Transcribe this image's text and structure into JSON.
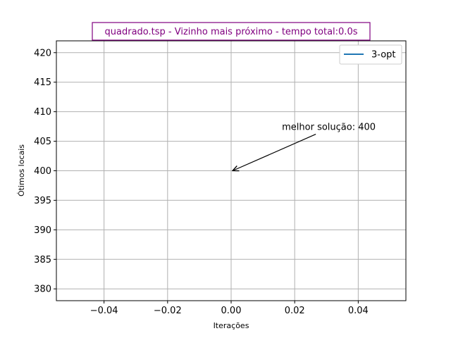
{
  "chart_data": {
    "type": "line",
    "title": "quadrado.tsp - Vizinho mais próximo - tempo total:0.0s",
    "xlabel": "Iterações",
    "ylabel": "Ótimos locais",
    "xlim": [
      -0.055,
      0.055
    ],
    "ylim": [
      378,
      422
    ],
    "xticks": [
      -0.04,
      -0.02,
      0.0,
      0.02,
      0.04
    ],
    "xtick_labels": [
      "−0.04",
      "−0.02",
      "0.00",
      "0.02",
      "0.04"
    ],
    "yticks": [
      380,
      385,
      390,
      395,
      400,
      405,
      410,
      415,
      420
    ],
    "ytick_labels": [
      "380",
      "385",
      "390",
      "395",
      "400",
      "405",
      "410",
      "415",
      "420"
    ],
    "grid": true,
    "legend_position": "top-right",
    "series": [
      {
        "name": "3-opt",
        "x": [
          0
        ],
        "y": [
          400
        ],
        "color": "#1f77b4"
      }
    ],
    "annotations": [
      {
        "text": "melhor solução: 400",
        "xy": [
          0,
          400
        ],
        "xytext": [
          0.016,
          407.5
        ]
      }
    ],
    "title_color": "#800080"
  }
}
